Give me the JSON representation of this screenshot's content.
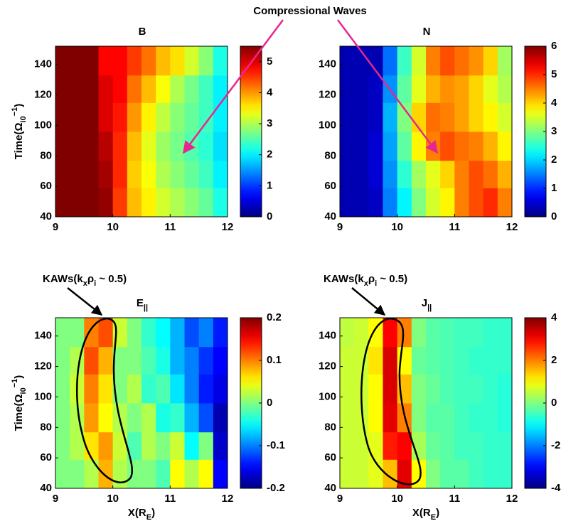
{
  "annotations": {
    "compressional_waves": "Compressional Waves",
    "kaws": [
      [
        "KAWs(k",
        "x",
        "ρ",
        "i",
        " ~ 0.5)"
      ],
      [
        "KAWs(k",
        "x",
        "ρ",
        "i",
        " ~ 0.5)"
      ]
    ]
  },
  "chart_data": [
    {
      "type": "heatmap",
      "title": "B",
      "ylabel": [
        "Time(Ω",
        "i0",
        "−1",
        ")"
      ],
      "xlim": [
        9,
        12
      ],
      "ylim": [
        40,
        152
      ],
      "xticks": [
        9,
        10,
        11,
        12
      ],
      "yticks": [
        40,
        60,
        80,
        100,
        120,
        140
      ],
      "xbins": [
        9,
        9.25,
        9.5,
        9.75,
        10,
        10.25,
        10.5,
        10.75,
        11,
        11.25,
        11.5,
        11.75,
        12
      ],
      "ybins": [
        40,
        59,
        77,
        96,
        115,
        133,
        152
      ],
      "z": [
        [
          5.5,
          5.5,
          5.5,
          5.4,
          4.5,
          3.8,
          3.5,
          3.2,
          3.0,
          2.8,
          2.6,
          2.2
        ],
        [
          5.5,
          5.5,
          5.5,
          5.3,
          4.6,
          3.7,
          3.4,
          3.0,
          2.8,
          2.6,
          2.4,
          2.0
        ],
        [
          5.5,
          5.5,
          5.5,
          5.2,
          4.6,
          3.8,
          3.3,
          2.9,
          2.7,
          2.5,
          2.3,
          1.9
        ],
        [
          5.5,
          5.5,
          5.5,
          5.0,
          4.7,
          4.0,
          3.5,
          3.1,
          2.8,
          2.6,
          2.4,
          2.0
        ],
        [
          5.5,
          5.5,
          5.5,
          5.0,
          4.8,
          4.2,
          3.8,
          3.4,
          3.0,
          2.7,
          2.4,
          2.0
        ],
        [
          5.5,
          5.5,
          5.5,
          4.8,
          4.8,
          4.5,
          4.2,
          3.8,
          3.6,
          3.2,
          2.8,
          2.2
        ]
      ],
      "colormap": "jet",
      "clim": [
        0,
        5.5
      ],
      "cticks": [
        0,
        1,
        2,
        3,
        4,
        5
      ]
    },
    {
      "type": "heatmap",
      "title": "N",
      "xlim": [
        9,
        12
      ],
      "ylim": [
        40,
        152
      ],
      "xticks": [
        9,
        10,
        11,
        12
      ],
      "yticks": [
        40,
        60,
        80,
        100,
        120,
        140
      ],
      "xbins": [
        9,
        9.25,
        9.5,
        9.75,
        10,
        10.25,
        10.5,
        10.75,
        11,
        11.25,
        11.5,
        11.75,
        12
      ],
      "ybins": [
        40,
        59,
        77,
        96,
        115,
        133,
        152
      ],
      "z": [
        [
          0.3,
          0.3,
          0.4,
          1.5,
          2.2,
          3.0,
          3.5,
          3.8,
          4.5,
          4.8,
          5.0,
          4.5
        ],
        [
          0.3,
          0.3,
          0.5,
          1.6,
          2.5,
          3.2,
          3.6,
          4.0,
          4.5,
          4.8,
          4.6,
          4.2
        ],
        [
          0.3,
          0.3,
          0.5,
          1.7,
          2.8,
          3.8,
          4.5,
          4.8,
          4.6,
          4.5,
          4.2,
          3.8
        ],
        [
          0.3,
          0.3,
          0.4,
          1.8,
          3.0,
          4.0,
          4.6,
          4.5,
          4.3,
          4.0,
          3.8,
          3.5
        ],
        [
          0.3,
          0.3,
          0.4,
          1.6,
          2.8,
          3.6,
          4.2,
          4.4,
          4.3,
          4.0,
          3.6,
          3.3
        ],
        [
          0.3,
          0.3,
          0.3,
          1.4,
          2.6,
          3.5,
          4.5,
          4.8,
          4.6,
          4.4,
          4.0,
          3.2
        ]
      ],
      "colormap": "jet",
      "clim": [
        0,
        6
      ],
      "cticks": [
        0,
        1,
        2,
        3,
        4,
        5,
        6
      ]
    },
    {
      "type": "heatmap",
      "title": "E",
      "title_subscript": "||",
      "ylabel": [
        "Time(Ω",
        "i0",
        "−1",
        ")"
      ],
      "xlabel": [
        "X(R",
        "E",
        ")"
      ],
      "xlim": [
        9,
        12
      ],
      "ylim": [
        40,
        152
      ],
      "xticks": [
        9,
        10,
        11,
        12
      ],
      "yticks": [
        40,
        60,
        80,
        100,
        120,
        140
      ],
      "xbins": [
        9,
        9.25,
        9.5,
        9.75,
        10,
        10.25,
        10.5,
        10.75,
        11,
        11.25,
        11.5,
        11.75,
        12
      ],
      "ybins": [
        40,
        59,
        77,
        96,
        115,
        133,
        152
      ],
      "z": [
        [
          0,
          0,
          0.02,
          0.08,
          0.02,
          0,
          0,
          -0.02,
          0.05,
          0.02,
          0.05,
          -0.15
        ],
        [
          0,
          0.02,
          0.06,
          0.09,
          0.03,
          -0.02,
          0.02,
          0,
          0.03,
          -0.05,
          0,
          -0.17
        ],
        [
          0,
          0.02,
          0.09,
          0.05,
          0.02,
          0,
          0.02,
          -0.04,
          -0.03,
          -0.08,
          -0.12,
          -0.18
        ],
        [
          0,
          0.03,
          0.1,
          0.06,
          0,
          0.02,
          -0.03,
          -0.02,
          -0.06,
          -0.1,
          -0.14,
          -0.16
        ],
        [
          0,
          0.02,
          0.12,
          0.08,
          0,
          0,
          -0.02,
          -0.04,
          -0.08,
          -0.1,
          -0.13,
          -0.15
        ],
        [
          0,
          0,
          0.1,
          0.12,
          0.03,
          0,
          -0.03,
          -0.05,
          -0.08,
          -0.12,
          -0.1,
          -0.14
        ]
      ],
      "colormap": "jet",
      "clim": [
        -0.2,
        0.2
      ],
      "cticks": [
        -0.2,
        -0.1,
        0,
        0.1,
        0.2
      ]
    },
    {
      "type": "heatmap",
      "title": "J",
      "title_subscript": "||",
      "xlabel": [
        "X(R",
        "E",
        ")"
      ],
      "xlim": [
        9,
        12
      ],
      "ylim": [
        40,
        152
      ],
      "xticks": [
        9,
        10,
        11,
        12
      ],
      "yticks": [
        40,
        60,
        80,
        100,
        120,
        140
      ],
      "xbins": [
        9,
        9.25,
        9.5,
        9.75,
        10,
        10.25,
        10.5,
        10.75,
        11,
        11.25,
        11.5,
        11.75,
        12
      ],
      "ybins": [
        40,
        59,
        77,
        96,
        115,
        133,
        152
      ],
      "z": [
        [
          0.6,
          0.6,
          0.8,
          1.5,
          3.2,
          1.0,
          0,
          -0.3,
          -0.3,
          -0.5,
          -0.6,
          -0.6
        ],
        [
          0.6,
          0.6,
          0.8,
          2.8,
          3.0,
          0.3,
          -0.2,
          -0.3,
          -0.5,
          -0.5,
          -0.6,
          -0.6
        ],
        [
          0.6,
          0.6,
          1.0,
          3.2,
          2.0,
          0,
          -0.3,
          -0.3,
          -0.5,
          -0.6,
          -0.6,
          -0.7
        ],
        [
          0.6,
          0.6,
          1.0,
          3.3,
          1.5,
          0,
          -0.2,
          -0.4,
          -0.5,
          -0.5,
          -0.6,
          -0.7
        ],
        [
          0.6,
          0.6,
          1.2,
          3.3,
          1.0,
          -0.2,
          -0.3,
          -0.4,
          -0.5,
          -0.6,
          -0.6,
          -0.6
        ],
        [
          0.5,
          0.6,
          1.0,
          3.0,
          2.0,
          0,
          -0.3,
          -0.4,
          -0.5,
          -0.5,
          -0.6,
          -0.6
        ]
      ],
      "colormap": "jet",
      "clim": [
        -4,
        4
      ],
      "cticks": [
        -4,
        -2,
        0,
        2,
        4
      ]
    }
  ]
}
